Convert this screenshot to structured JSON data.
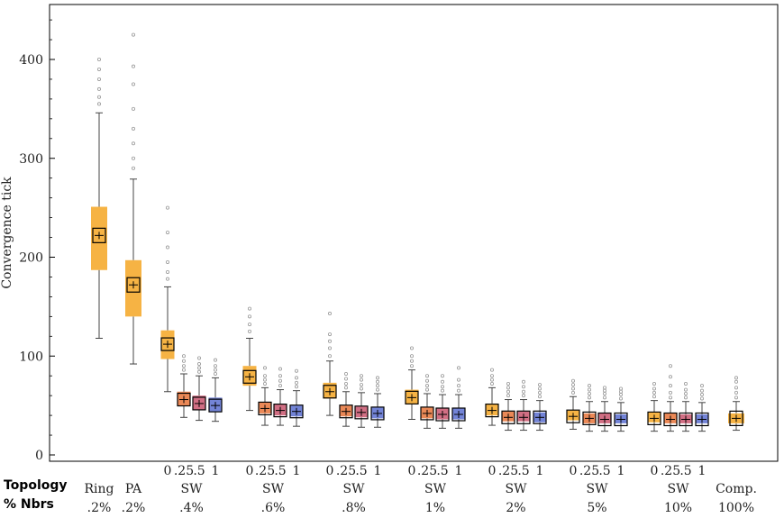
{
  "chart_data": {
    "type": "box",
    "ylabel": "Convergence tick",
    "ylim": [
      0,
      450
    ],
    "yticks": [
      0,
      100,
      200,
      300,
      400
    ],
    "grid": false,
    "row_labels": [
      "Topology",
      "% Nbrs"
    ],
    "colors": {
      "0": "#f5a623",
      "0.25": "#e8743a",
      "0.5": "#c9566e",
      "1": "#5b6fd0"
    },
    "groups": [
      {
        "topology": "Ring",
        "nbrs": ".2%",
        "boxes": [
          {
            "label": "",
            "color_key": "0",
            "whisker_low": 118,
            "q1": 187,
            "median": 222,
            "q3": 251,
            "whisker_high": 346,
            "outliers": [
              355,
              362,
              370,
              380,
              390,
              400
            ]
          }
        ]
      },
      {
        "topology": "PA",
        "nbrs": ".2%",
        "boxes": [
          {
            "label": "",
            "color_key": "0",
            "whisker_low": 92,
            "q1": 140,
            "median": 172,
            "q3": 197,
            "whisker_high": 279,
            "outliers": [
              290,
              300,
              315,
              330,
              350,
              375,
              393,
              425
            ]
          }
        ]
      },
      {
        "topology": "SW",
        "nbrs": ".4%",
        "boxes": [
          {
            "label": "0",
            "color_key": "0",
            "whisker_low": 64,
            "q1": 97,
            "median": 112,
            "q3": 126,
            "whisker_high": 170,
            "outliers": [
              178,
              185,
              195,
              210,
              225,
              250
            ]
          },
          {
            "label": ".25",
            "color_key": "0.25",
            "whisker_low": 38,
            "q1": 50,
            "median": 56,
            "q3": 64,
            "whisker_high": 82,
            "outliers": [
              86,
              90,
              95,
              100
            ]
          },
          {
            "label": ".5",
            "color_key": "0.5",
            "whisker_low": 35,
            "q1": 46,
            "median": 52,
            "q3": 60,
            "whisker_high": 80,
            "outliers": [
              84,
              88,
              92,
              98
            ]
          },
          {
            "label": "1",
            "color_key": "1",
            "whisker_low": 34,
            "q1": 44,
            "median": 50,
            "q3": 58,
            "whisker_high": 78,
            "outliers": [
              82,
              86,
              90,
              96
            ]
          }
        ]
      },
      {
        "topology": "SW",
        "nbrs": ".6%",
        "boxes": [
          {
            "label": "0",
            "color_key": "0",
            "whisker_low": 45,
            "q1": 70,
            "median": 79,
            "q3": 90,
            "whisker_high": 118,
            "outliers": [
              125,
              132,
              140,
              148
            ]
          },
          {
            "label": ".25",
            "color_key": "0.25",
            "whisker_low": 30,
            "q1": 42,
            "median": 47,
            "q3": 53,
            "whisker_high": 68,
            "outliers": [
              72,
              76,
              80,
              88
            ]
          },
          {
            "label": ".5",
            "color_key": "0.5",
            "whisker_low": 30,
            "q1": 40,
            "median": 45,
            "q3": 51,
            "whisker_high": 66,
            "outliers": [
              70,
              75,
              80,
              87
            ]
          },
          {
            "label": "1",
            "color_key": "1",
            "whisker_low": 29,
            "q1": 39,
            "median": 44,
            "q3": 50,
            "whisker_high": 65,
            "outliers": [
              69,
              73,
              78,
              85
            ]
          }
        ]
      },
      {
        "topology": "SW",
        "nbrs": ".8%",
        "boxes": [
          {
            "label": "0",
            "color_key": "0",
            "whisker_low": 40,
            "q1": 57,
            "median": 64,
            "q3": 73,
            "whisker_high": 95,
            "outliers": [
              100,
              108,
              115,
              122,
              143
            ]
          },
          {
            "label": ".25",
            "color_key": "0.25",
            "whisker_low": 29,
            "q1": 39,
            "median": 44,
            "q3": 50,
            "whisker_high": 64,
            "outliers": [
              68,
              72,
              77,
              82
            ]
          },
          {
            "label": ".5",
            "color_key": "0.5",
            "whisker_low": 28,
            "q1": 38,
            "median": 43,
            "q3": 49,
            "whisker_high": 63,
            "outliers": [
              67,
              71,
              76,
              80
            ]
          },
          {
            "label": "1",
            "color_key": "1",
            "whisker_low": 28,
            "q1": 37,
            "median": 42,
            "q3": 48,
            "whisker_high": 62,
            "outliers": [
              66,
              70,
              74,
              78
            ]
          }
        ]
      },
      {
        "topology": "SW",
        "nbrs": "1%",
        "boxes": [
          {
            "label": "0",
            "color_key": "0",
            "whisker_low": 36,
            "q1": 51,
            "median": 58,
            "q3": 66,
            "whisker_high": 86,
            "outliers": [
              90,
              95,
              100,
              108
            ]
          },
          {
            "label": ".25",
            "color_key": "0.25",
            "whisker_low": 27,
            "q1": 37,
            "median": 42,
            "q3": 48,
            "whisker_high": 62,
            "outliers": [
              66,
              70,
              75,
              80
            ]
          },
          {
            "label": ".5",
            "color_key": "0.5",
            "whisker_low": 27,
            "q1": 36,
            "median": 41,
            "q3": 47,
            "whisker_high": 61,
            "outliers": [
              65,
              69,
              74,
              80
            ]
          },
          {
            "label": "1",
            "color_key": "1",
            "whisker_low": 27,
            "q1": 36,
            "median": 41,
            "q3": 47,
            "whisker_high": 61,
            "outliers": [
              65,
              70,
              76,
              88
            ]
          }
        ]
      },
      {
        "topology": "SW",
        "nbrs": "2%",
        "boxes": [
          {
            "label": "0",
            "color_key": "0",
            "whisker_low": 30,
            "q1": 40,
            "median": 45,
            "q3": 52,
            "whisker_high": 68,
            "outliers": [
              72,
              76,
              80,
              86
            ]
          },
          {
            "label": ".25",
            "color_key": "0.25",
            "whisker_low": 25,
            "q1": 34,
            "median": 38,
            "q3": 44,
            "whisker_high": 56,
            "outliers": [
              60,
              64,
              68,
              72
            ]
          },
          {
            "label": ".5",
            "color_key": "0.5",
            "whisker_low": 25,
            "q1": 34,
            "median": 38,
            "q3": 44,
            "whisker_high": 56,
            "outliers": [
              60,
              64,
              69,
              74
            ]
          },
          {
            "label": "1",
            "color_key": "1",
            "whisker_low": 25,
            "q1": 33,
            "median": 38,
            "q3": 43,
            "whisker_high": 55,
            "outliers": [
              59,
              63,
              67,
              71
            ]
          }
        ]
      },
      {
        "topology": "SW",
        "nbrs": "5%",
        "boxes": [
          {
            "label": "0",
            "color_key": "0",
            "whisker_low": 26,
            "q1": 35,
            "median": 39,
            "q3": 45,
            "whisker_high": 59,
            "outliers": [
              63,
              67,
              71,
              75
            ]
          },
          {
            "label": ".25",
            "color_key": "0.25",
            "whisker_low": 24,
            "q1": 32,
            "median": 37,
            "q3": 42,
            "whisker_high": 54,
            "outliers": [
              58,
              62,
              66,
              70
            ]
          },
          {
            "label": ".5",
            "color_key": "0.5",
            "whisker_low": 24,
            "q1": 32,
            "median": 36,
            "q3": 42,
            "whisker_high": 54,
            "outliers": [
              58,
              62,
              65,
              68
            ]
          },
          {
            "label": "1",
            "color_key": "1",
            "whisker_low": 24,
            "q1": 32,
            "median": 36,
            "q3": 41,
            "whisker_high": 53,
            "outliers": [
              57,
              61,
              64,
              67
            ]
          }
        ]
      },
      {
        "topology": "SW",
        "nbrs": "10%",
        "boxes": [
          {
            "label": "0",
            "color_key": "0",
            "whisker_low": 24,
            "q1": 33,
            "median": 37,
            "q3": 43,
            "whisker_high": 55,
            "outliers": [
              59,
              63,
              67,
              72
            ]
          },
          {
            "label": ".25",
            "color_key": "0.25",
            "whisker_low": 24,
            "q1": 32,
            "median": 36,
            "q3": 42,
            "whisker_high": 54,
            "outliers": [
              58,
              63,
              70,
              79,
              90
            ]
          },
          {
            "label": ".5",
            "color_key": "0.5",
            "whisker_low": 24,
            "q1": 32,
            "median": 36,
            "q3": 41,
            "whisker_high": 54,
            "outliers": [
              58,
              62,
              66,
              72
            ]
          },
          {
            "label": "1",
            "color_key": "1",
            "whisker_low": 24,
            "q1": 32,
            "median": 36,
            "q3": 41,
            "whisker_high": 53,
            "outliers": [
              57,
              61,
              65,
              70
            ]
          }
        ]
      },
      {
        "topology": "Comp.",
        "nbrs": "100%",
        "boxes": [
          {
            "label": "",
            "color_key": "0",
            "whisker_low": 25,
            "q1": 32,
            "median": 37,
            "q3": 42,
            "whisker_high": 54,
            "outliers": [
              58,
              63,
              68,
              74,
              78
            ]
          }
        ]
      }
    ]
  }
}
